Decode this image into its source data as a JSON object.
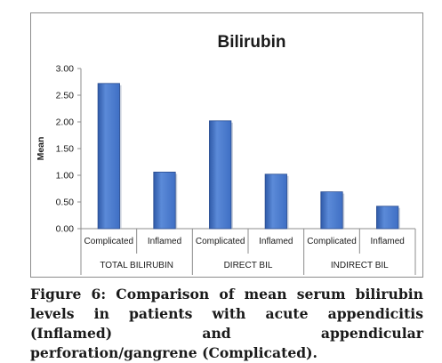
{
  "caption": "Figure 6: Comparison of mean serum bilirubin levels in patients with acute appendicitis (Inflamed) and appendicular perforation/gangrene (Complicated).",
  "colors": {
    "bar_fill": "#3f6fc4",
    "bar_stroke": "#2a4d91",
    "axis": "#8c8c8c"
  },
  "chart_data": {
    "type": "bar",
    "title": "Bilirubin",
    "xlabel": "",
    "ylabel": "Mean",
    "ylim": [
      0,
      3
    ],
    "yticks": [
      "0.00",
      "0.50",
      "1.00",
      "1.50",
      "2.00",
      "2.50",
      "3.00"
    ],
    "grid": false,
    "groups": [
      {
        "label": "TOTAL BILIRUBIN",
        "categories": [
          "Complicated",
          "Inflamed"
        ],
        "values": [
          2.72,
          1.06
        ]
      },
      {
        "label": "DIRECT BIL",
        "categories": [
          "Complicated",
          "Inflamed"
        ],
        "values": [
          2.02,
          1.02
        ]
      },
      {
        "label": "INDIRECT BIL",
        "categories": [
          "Complicated",
          "Inflamed"
        ],
        "values": [
          0.69,
          0.42
        ]
      }
    ]
  }
}
